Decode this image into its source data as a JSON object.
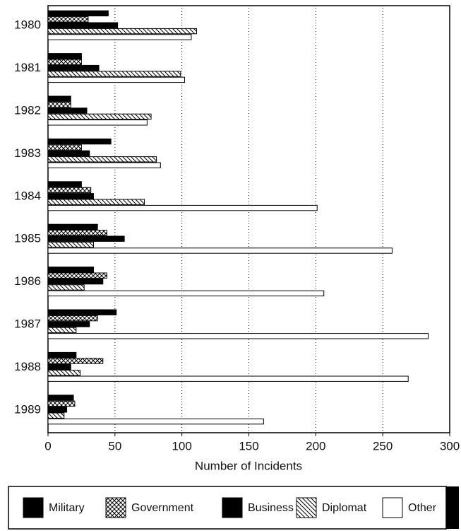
{
  "chart_data": {
    "type": "barh",
    "xlabel": "Number of Incidents",
    "categories": [
      "1980",
      "1981",
      "1982",
      "1983",
      "1984",
      "1985",
      "1986",
      "1987",
      "1988",
      "1989"
    ],
    "series": [
      {
        "name": "Military",
        "color": "#000000",
        "pattern": "solid",
        "values": [
          45,
          25,
          17,
          47,
          25,
          37,
          34,
          51,
          21,
          19
        ]
      },
      {
        "name": "Government",
        "color": "#000000",
        "pattern": "crosshatch",
        "values": [
          30,
          25,
          17,
          25,
          32,
          44,
          44,
          37,
          41,
          20
        ]
      },
      {
        "name": "Business",
        "color": "#000000",
        "pattern": "solid",
        "values": [
          52,
          38,
          29,
          31,
          34,
          57,
          41,
          31,
          17,
          14
        ]
      },
      {
        "name": "Diplomat",
        "color": "#000000",
        "pattern": "hatch",
        "values": [
          111,
          99,
          77,
          81,
          72,
          34,
          27,
          21,
          24,
          12
        ]
      },
      {
        "name": "Other",
        "color": "#ffffff",
        "pattern": "none",
        "values": [
          107,
          102,
          74,
          84,
          201,
          257,
          206,
          284,
          269,
          161
        ]
      }
    ],
    "xlim": [
      0,
      300
    ],
    "xticks": [
      0,
      50,
      100,
      150,
      200,
      250,
      300
    ],
    "grid": true,
    "legend": "bottom"
  }
}
